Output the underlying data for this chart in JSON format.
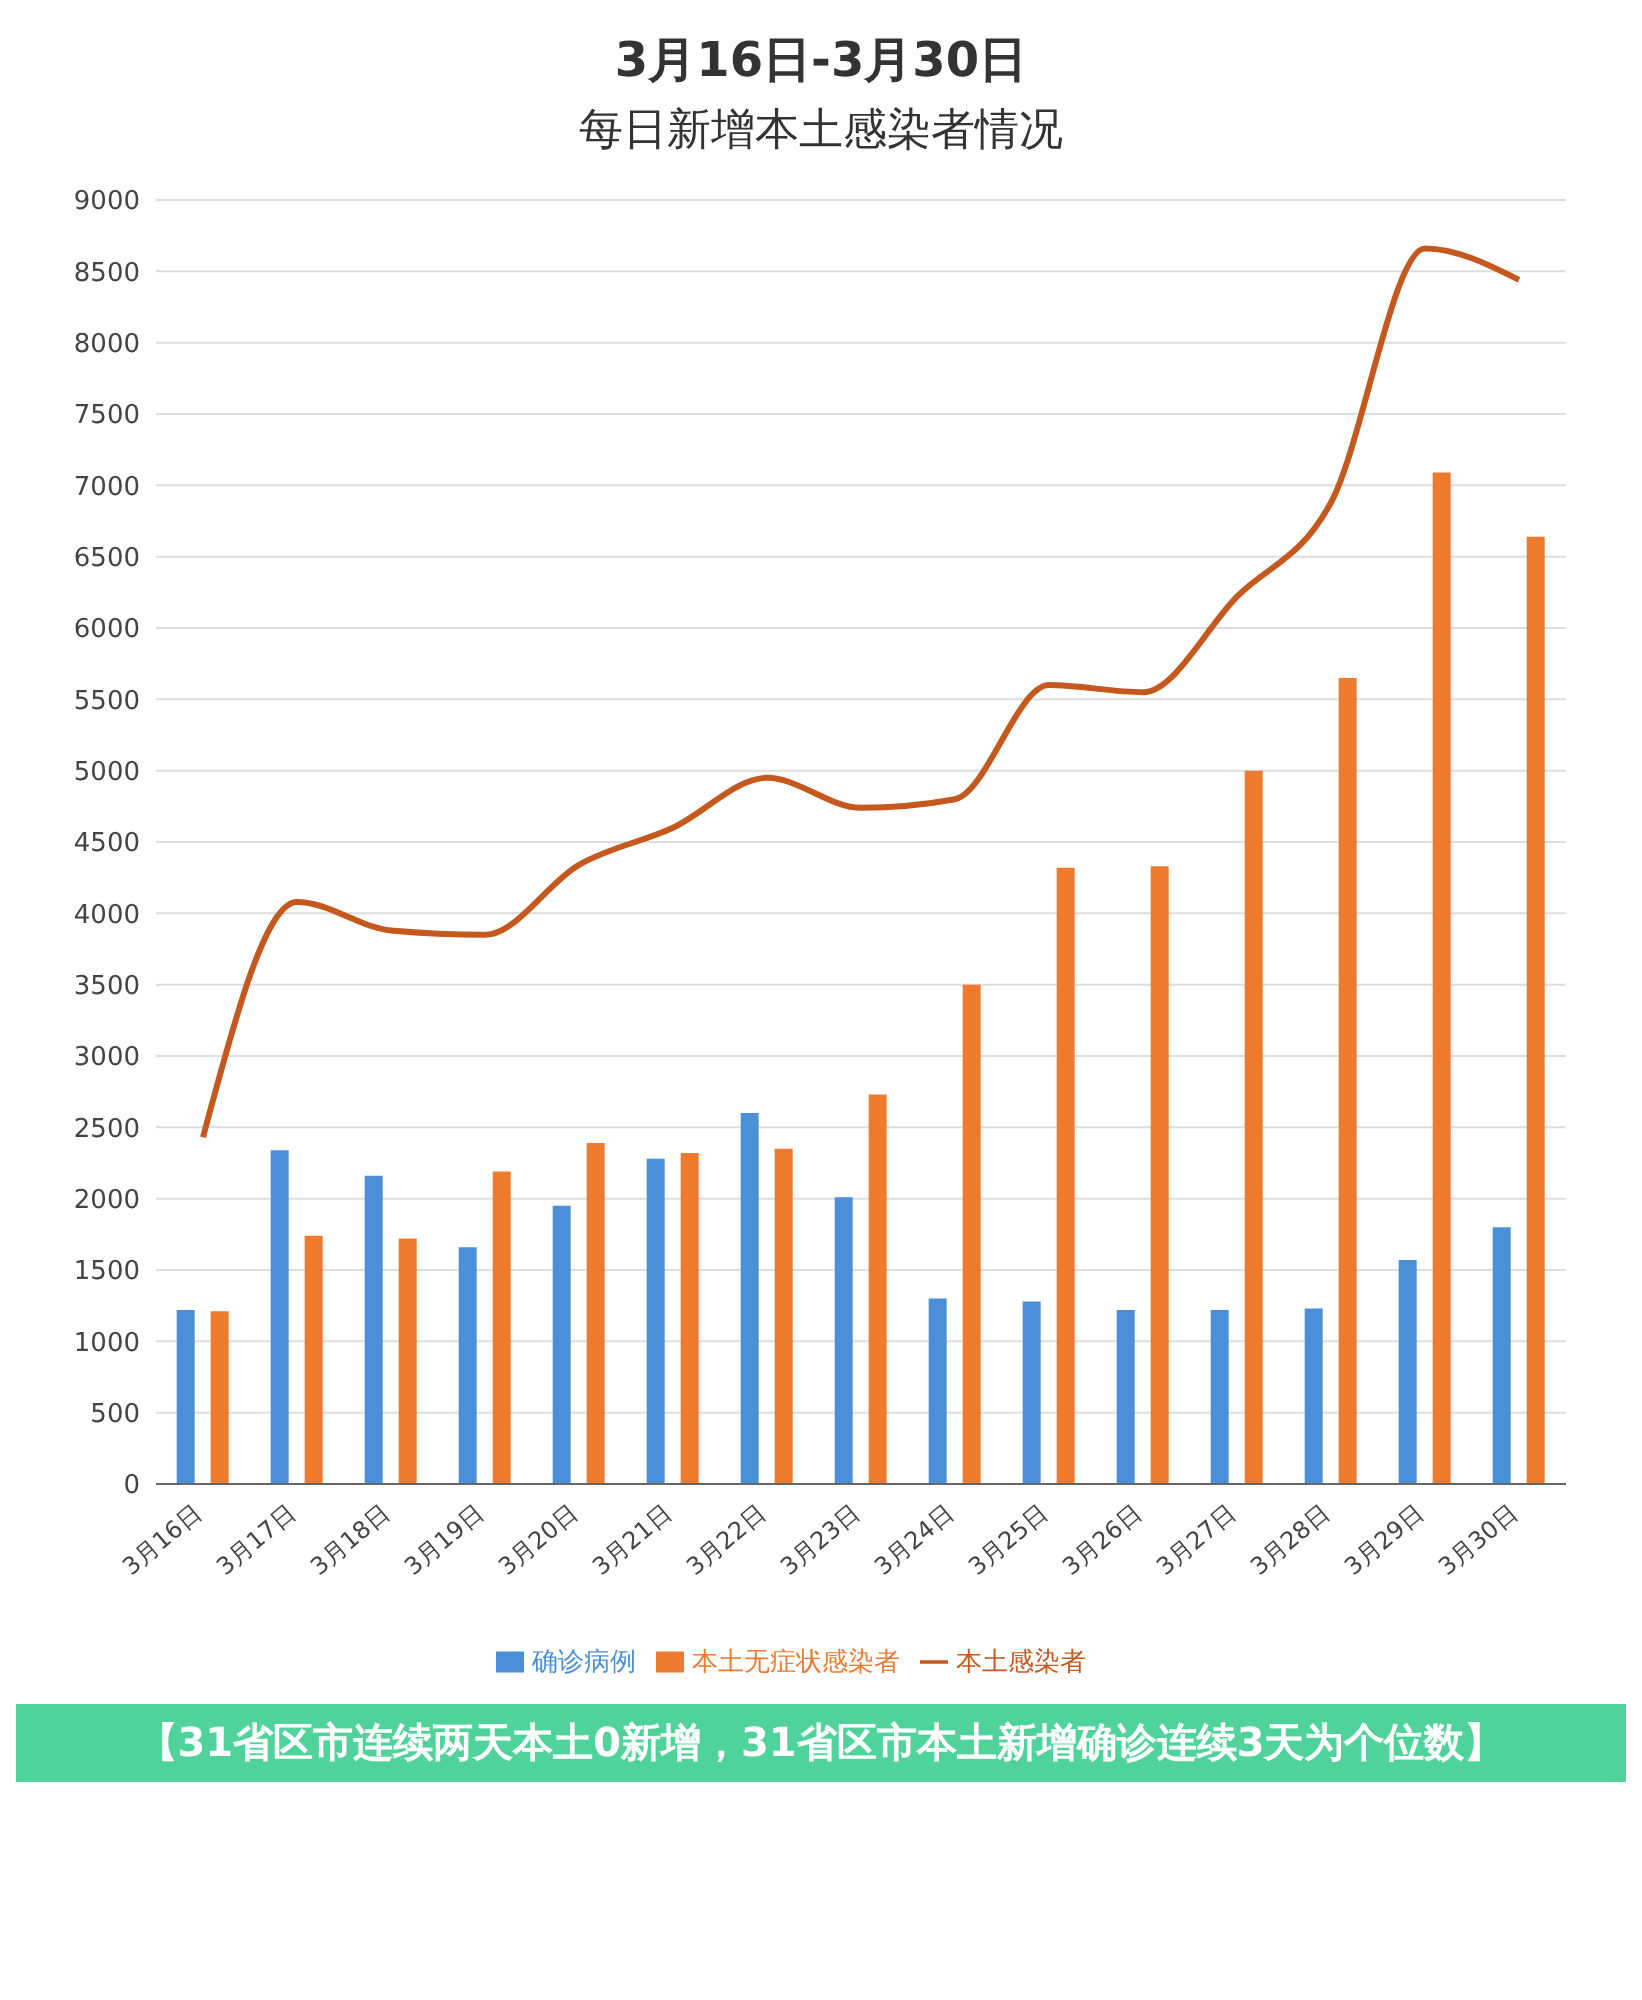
{
  "chart_data": {
    "type": "bar",
    "title": "3月16日-3月30日",
    "subtitle": "每日新增本土感染者情况",
    "categories": [
      "3月16日",
      "3月17日",
      "3月18日",
      "3月19日",
      "3月20日",
      "3月21日",
      "3月22日",
      "3月23日",
      "3月24日",
      "3月25日",
      "3月26日",
      "3月27日",
      "3月28日",
      "3月29日",
      "3月30日"
    ],
    "series": [
      {
        "name": "确诊病例",
        "color": "#4a8fd8",
        "values": [
          1220,
          2340,
          2160,
          1660,
          1950,
          2280,
          2600,
          2010,
          1300,
          1280,
          1220,
          1220,
          1230,
          1570,
          1800
        ]
      },
      {
        "name": "本土无症状感染者",
        "color": "#ee7a2e",
        "values": [
          1210,
          1740,
          1720,
          2190,
          2390,
          2320,
          2350,
          2730,
          3500,
          4320,
          4330,
          5000,
          5650,
          7090,
          6640
        ]
      },
      {
        "name": "本土感染者",
        "type": "line",
        "color": "#c4581d",
        "values": [
          2430,
          4080,
          3880,
          3850,
          4340,
          4600,
          4950,
          4740,
          4800,
          5600,
          5550,
          6220,
          6880,
          8660,
          8440
        ]
      }
    ],
    "ylim": [
      0,
      9000
    ],
    "yticks": [
      0,
      500,
      1000,
      1500,
      2000,
      2500,
      3000,
      3500,
      4000,
      4500,
      5000,
      5500,
      6000,
      6500,
      7000,
      7500,
      8000,
      8500,
      9000
    ],
    "grid": "y",
    "legend": "bottom",
    "marker": "none",
    "line_style": "solid",
    "annotations": [
      "【31省区市连续两天本土0新增，31省区市本土新增确诊连续3天为个位数】"
    ]
  }
}
